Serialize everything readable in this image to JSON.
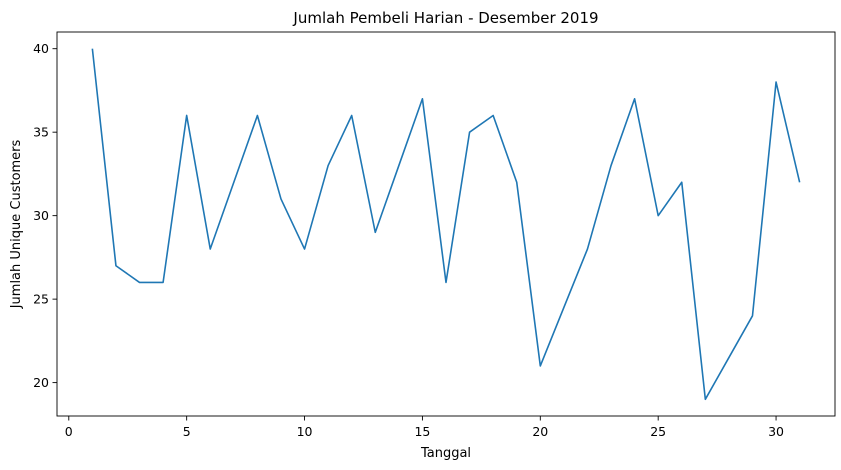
{
  "chart_data": {
    "type": "line",
    "title": "Jumlah Pembeli Harian - Desember 2019",
    "xlabel": "Tanggal",
    "ylabel": "Jumlah Unique Customers",
    "xlim": [
      -0.5,
      32.5
    ],
    "ylim": [
      18.0,
      41.0
    ],
    "xticks": [
      0,
      5,
      10,
      15,
      20,
      25,
      30
    ],
    "yticks": [
      20,
      25,
      30,
      35,
      40
    ],
    "grid": false,
    "series": [
      {
        "color": "#1f77b4",
        "x": [
          1,
          2,
          3,
          4,
          5,
          6,
          7,
          8,
          9,
          10,
          11,
          12,
          13,
          14,
          15,
          16,
          17,
          18,
          19,
          20,
          21,
          22,
          23,
          24,
          25,
          26,
          27,
          28,
          29,
          30,
          31
        ],
        "values": [
          40,
          27,
          26,
          26,
          36,
          28,
          32,
          36,
          31,
          28,
          33,
          36,
          29,
          33,
          37,
          26,
          35,
          36,
          32,
          21,
          24.5,
          28,
          33,
          37,
          30,
          32,
          19,
          21.5,
          24,
          38,
          32
        ]
      }
    ]
  }
}
